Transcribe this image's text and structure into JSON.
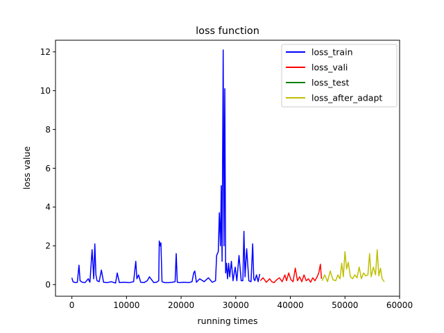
{
  "chart_data": {
    "type": "line",
    "title": "loss function",
    "xlabel": "running times",
    "ylabel": "loss value",
    "xlim": [
      -3000,
      60000
    ],
    "ylim": [
      -0.6,
      12.6
    ],
    "xticks": [
      0,
      10000,
      20000,
      30000,
      40000,
      50000,
      60000
    ],
    "xtick_labels": [
      "0",
      "10000",
      "20000",
      "30000",
      "40000",
      "50000",
      "60000"
    ],
    "yticks": [
      0,
      2,
      4,
      6,
      8,
      10,
      12
    ],
    "ytick_labels": [
      "0",
      "2",
      "4",
      "6",
      "8",
      "10",
      "12"
    ],
    "grid": false,
    "legend_position": "top-right",
    "series": [
      {
        "name": "loss_train",
        "color": "#0000ff",
        "x": [
          0,
          200,
          600,
          1000,
          1300,
          1500,
          1900,
          2400,
          3000,
          3300,
          3700,
          4000,
          4200,
          4400,
          4600,
          5000,
          5400,
          5800,
          6500,
          7200,
          8000,
          8300,
          8700,
          9500,
          10500,
          11300,
          11700,
          11900,
          12200,
          12600,
          13200,
          13800,
          14200,
          15000,
          15500,
          15900,
          16000,
          16150,
          16300,
          16500,
          17000,
          17800,
          18400,
          18900,
          19100,
          19300,
          19700,
          20500,
          21400,
          22000,
          22300,
          22500,
          22800,
          23400,
          24200,
          25000,
          25700,
          26300,
          26500,
          26800,
          27000,
          27200,
          27350,
          27500,
          27700,
          27850,
          28000,
          28150,
          28300,
          28500,
          28700,
          28900,
          29200,
          29500,
          29900,
          30200,
          30600,
          31000,
          31300,
          31500,
          31700,
          32000,
          32400,
          32800,
          33100,
          33300,
          33500,
          33800,
          34100,
          34400
        ],
        "y": [
          0.35,
          0.15,
          0.1,
          0.12,
          1.0,
          0.2,
          0.12,
          0.1,
          0.3,
          0.12,
          1.8,
          0.3,
          2.1,
          0.5,
          0.2,
          0.15,
          0.75,
          0.12,
          0.1,
          0.15,
          0.08,
          0.6,
          0.1,
          0.12,
          0.1,
          0.15,
          1.2,
          0.3,
          0.5,
          0.12,
          0.1,
          0.2,
          0.4,
          0.1,
          0.12,
          0.2,
          2.25,
          2.0,
          2.15,
          0.15,
          0.1,
          0.1,
          0.12,
          0.15,
          1.6,
          0.12,
          0.1,
          0.12,
          0.1,
          0.15,
          0.6,
          0.7,
          0.12,
          0.3,
          0.15,
          0.35,
          0.12,
          0.2,
          1.5,
          1.7,
          3.7,
          2.0,
          5.1,
          1.2,
          12.1,
          2.0,
          10.1,
          0.6,
          1.1,
          0.3,
          1.1,
          0.4,
          1.2,
          0.2,
          0.9,
          0.2,
          1.5,
          0.2,
          0.2,
          2.75,
          0.4,
          1.85,
          0.2,
          0.15,
          2.1,
          0.3,
          0.2,
          0.5,
          0.15,
          0.55
        ]
      },
      {
        "name": "loss_vali",
        "color": "#ff0000",
        "x": [
          34500,
          35000,
          35600,
          36200,
          36600,
          37000,
          37500,
          38000,
          38500,
          39000,
          39300,
          39700,
          40100,
          40500,
          40900,
          41300,
          41700,
          42100,
          42500,
          42900,
          43300,
          43700,
          44100,
          44500,
          44900,
          45200,
          45500,
          45700
        ],
        "y": [
          0.2,
          0.35,
          0.12,
          0.3,
          0.15,
          0.1,
          0.25,
          0.35,
          0.15,
          0.5,
          0.2,
          0.6,
          0.25,
          0.15,
          0.85,
          0.2,
          0.4,
          0.15,
          0.5,
          0.2,
          0.3,
          0.12,
          0.35,
          0.2,
          0.4,
          0.6,
          1.05,
          0.3
        ]
      },
      {
        "name": "loss_test",
        "color": "#008000",
        "x": [],
        "y": []
      },
      {
        "name": "loss_after_adapt",
        "color": "#bfbf00",
        "x": [
          45800,
          46300,
          46800,
          47300,
          47800,
          48300,
          48700,
          49100,
          49400,
          49700,
          50000,
          50300,
          50600,
          51000,
          51400,
          51800,
          52200,
          52600,
          53000,
          53400,
          53800,
          54200,
          54500,
          54800,
          55200,
          55600,
          55900,
          56200,
          56500,
          56800,
          57200
        ],
        "y": [
          0.2,
          0.5,
          0.15,
          0.7,
          0.25,
          0.2,
          0.5,
          0.3,
          1.1,
          0.4,
          1.7,
          0.8,
          1.15,
          0.4,
          0.3,
          0.5,
          0.35,
          0.9,
          0.3,
          0.6,
          0.45,
          0.5,
          1.6,
          0.4,
          0.9,
          0.5,
          1.8,
          0.45,
          0.85,
          0.3,
          0.15
        ]
      }
    ]
  }
}
